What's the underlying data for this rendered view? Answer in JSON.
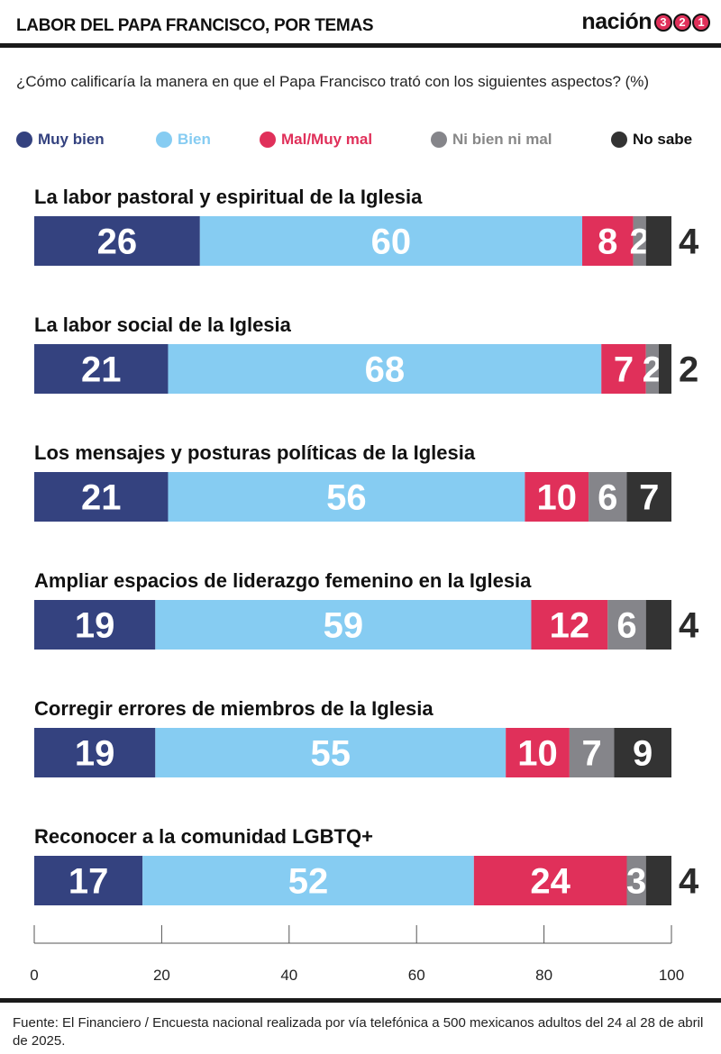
{
  "header": {
    "title": "LABOR DEL PAPA FRANCISCO, POR TEMAS",
    "brand_name": "nación",
    "brand_digits": [
      "3",
      "2",
      "1"
    ]
  },
  "question": "¿Cómo calificaría la manera en que el Papa Francisco trató con los siguientes aspectos? (%)",
  "colors": {
    "muy_bien": "#34427f",
    "bien": "#86ccf2",
    "mal": "#e0305a",
    "ni": "#85858a",
    "no_sabe": "#333333"
  },
  "chart_data": {
    "type": "bar",
    "orientation": "horizontal",
    "stacked": true,
    "categories": [
      "La labor pastoral y espiritual de la Iglesia",
      "La labor social de la Iglesia",
      "Los mensajes y posturas políticas de la Iglesia",
      "Ampliar espacios de liderazgo femenino en la Iglesia",
      "Corregir errores de miembros de la Iglesia",
      "Reconocer a la comunidad LGBTQ+"
    ],
    "series": [
      {
        "name": "Muy bien",
        "color": "#34427f",
        "values": [
          26,
          21,
          21,
          19,
          19,
          17
        ]
      },
      {
        "name": "Bien",
        "color": "#86ccf2",
        "values": [
          60,
          68,
          56,
          59,
          55,
          52
        ]
      },
      {
        "name": "Mal/Muy mal",
        "color": "#e0305a",
        "values": [
          8,
          7,
          10,
          12,
          10,
          24
        ]
      },
      {
        "name": "Ni bien ni mal",
        "color": "#85858a",
        "values": [
          2,
          2,
          6,
          6,
          7,
          3
        ]
      },
      {
        "name": "No sabe",
        "color": "#333333",
        "values": [
          4,
          2,
          7,
          4,
          9,
          4
        ]
      }
    ],
    "xlim": [
      0,
      100
    ],
    "xticks": [
      "0",
      "20",
      "40",
      "60",
      "80",
      "100"
    ],
    "legend_position": "top"
  },
  "source": "Fuente: El Financiero / Encuesta nacional realizada por vía telefónica a 500 mexicanos adultos del 24 al 28 de abril de 2025."
}
